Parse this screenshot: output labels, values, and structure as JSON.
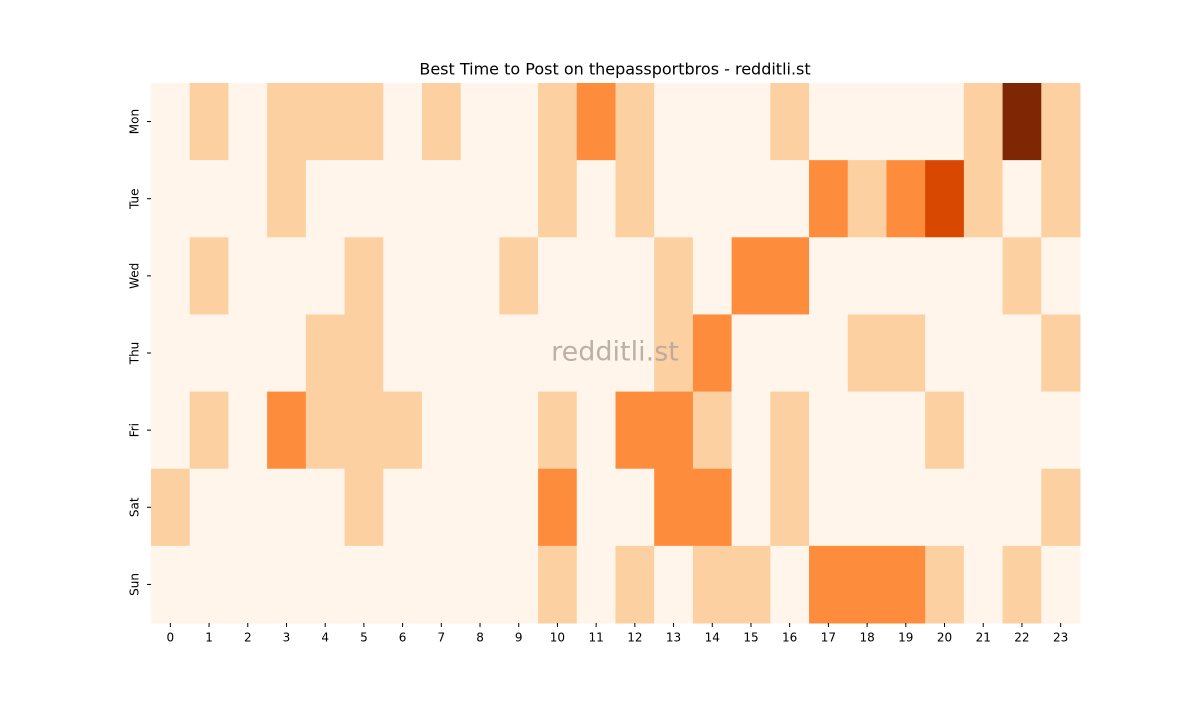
{
  "chart_data": {
    "type": "heatmap",
    "title": "Best Time to Post on thepassportbros - redditli.st",
    "watermark": "redditli.st",
    "x_categories": [
      "0",
      "1",
      "2",
      "3",
      "4",
      "5",
      "6",
      "7",
      "8",
      "9",
      "10",
      "11",
      "12",
      "13",
      "14",
      "15",
      "16",
      "17",
      "18",
      "19",
      "20",
      "21",
      "22",
      "23"
    ],
    "y_categories": [
      "Mon",
      "Tue",
      "Wed",
      "Thu",
      "Fri",
      "Sat",
      "Sun"
    ],
    "values": [
      [
        0,
        1,
        0,
        1,
        1,
        1,
        0,
        1,
        0,
        0,
        1,
        2,
        1,
        0,
        0,
        0,
        1,
        0,
        0,
        0,
        0,
        1,
        4,
        1
      ],
      [
        0,
        0,
        0,
        1,
        0,
        0,
        0,
        0,
        0,
        0,
        1,
        0,
        1,
        0,
        0,
        0,
        0,
        2,
        1,
        2,
        3,
        1,
        0,
        1
      ],
      [
        0,
        1,
        0,
        0,
        0,
        1,
        0,
        0,
        0,
        1,
        0,
        0,
        0,
        1,
        0,
        2,
        2,
        0,
        0,
        0,
        0,
        0,
        1,
        0
      ],
      [
        0,
        0,
        0,
        0,
        1,
        1,
        0,
        0,
        0,
        0,
        0,
        0,
        0,
        1,
        2,
        0,
        0,
        0,
        1,
        1,
        0,
        0,
        0,
        1
      ],
      [
        0,
        1,
        0,
        2,
        1,
        1,
        1,
        0,
        0,
        0,
        1,
        0,
        2,
        2,
        1,
        0,
        1,
        0,
        0,
        0,
        1,
        0,
        0,
        0
      ],
      [
        1,
        0,
        0,
        0,
        0,
        1,
        0,
        0,
        0,
        0,
        2,
        0,
        0,
        2,
        2,
        0,
        1,
        0,
        0,
        0,
        0,
        0,
        0,
        1
      ],
      [
        0,
        0,
        0,
        0,
        0,
        0,
        0,
        0,
        0,
        0,
        1,
        0,
        1,
        0,
        1,
        1,
        0,
        2,
        2,
        2,
        1,
        0,
        1,
        0
      ]
    ],
    "zlim": [
      0,
      4
    ],
    "colormap": [
      "#fff5eb",
      "#fdd0a2",
      "#fd8d3c",
      "#d94801",
      "#7f2704"
    ]
  }
}
